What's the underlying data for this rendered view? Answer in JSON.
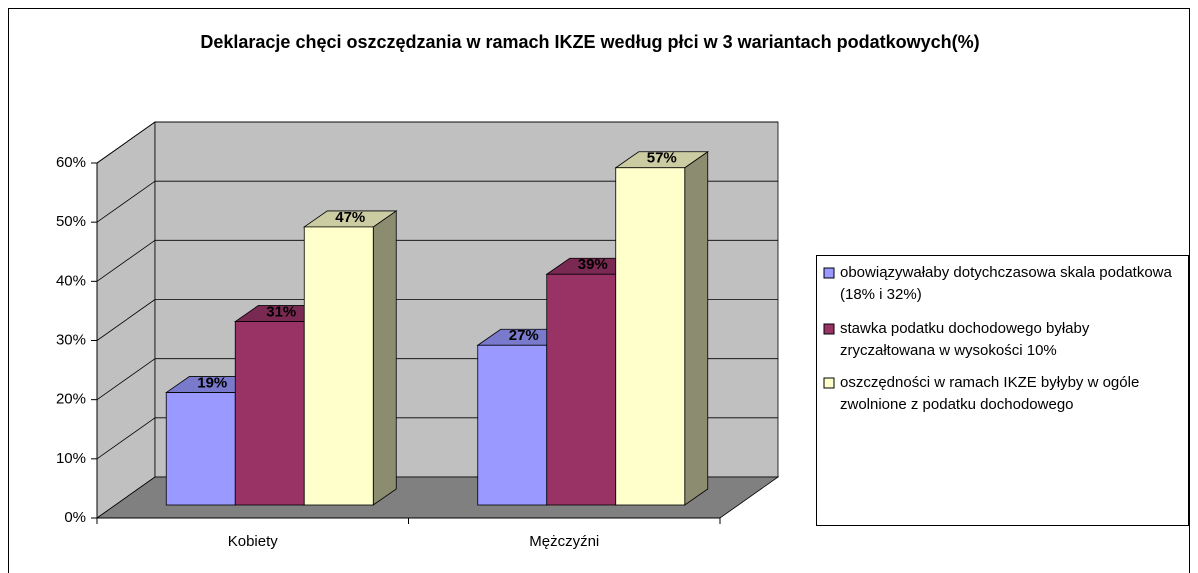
{
  "chart_data": {
    "type": "bar3d",
    "title": "Deklaracje chęci oszczędzania w ramach IKZE według płci w 3 wariantach podatkowych(%)",
    "categories": [
      "Kobiety",
      "Mężczyźni"
    ],
    "series": [
      {
        "name": "obowiązywałaby dotychczasowa skala podatkowa (18% i 32%)",
        "color": "#9999ff",
        "values": [
          19,
          27
        ],
        "value_labels": [
          "19%",
          "27%"
        ]
      },
      {
        "name": "stawka podatku dochodowego byłaby zryczałtowana w wysokości 10%",
        "color": "#993366",
        "values": [
          31,
          39
        ],
        "value_labels": [
          "31%",
          "39%"
        ]
      },
      {
        "name": "oszczędności w ramach IKZE byłyby w ogóle zwolnione z podatku dochodowego",
        "color": "#ffffcc",
        "values": [
          47,
          57
        ],
        "value_labels": [
          "47%",
          "57%"
        ]
      }
    ],
    "ylim": [
      0,
      60
    ],
    "yticks": [
      {
        "value": 0,
        "label": "0%"
      },
      {
        "value": 10,
        "label": "10%"
      },
      {
        "value": 20,
        "label": "20%"
      },
      {
        "value": 30,
        "label": "30%"
      },
      {
        "value": 40,
        "label": "40%"
      },
      {
        "value": 50,
        "label": "50%"
      },
      {
        "value": 60,
        "label": "60%"
      }
    ],
    "grid": true,
    "legend": "right"
  }
}
